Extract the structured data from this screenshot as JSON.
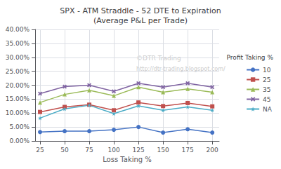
{
  "chart_data": {
    "type": "line",
    "title": "SPX - ATM Straddle - 52 DTE to Expiration\n(Average P&L per Trade)",
    "xlabel": "Loss Taking %",
    "legend_title": "Profit Taking %",
    "annotations": [
      "©DTR Trading",
      "http://dtr-trading.blogspot.com/"
    ],
    "x": [
      25,
      50,
      75,
      100,
      125,
      150,
      175,
      200
    ],
    "series": [
      {
        "name": "10",
        "color": "#4472C4",
        "marker": "circle",
        "values": [
          0.032,
          0.035,
          0.035,
          0.04,
          0.05,
          0.03,
          0.042,
          0.03
        ]
      },
      {
        "name": "25",
        "color": "#C0504D",
        "marker": "square",
        "values": [
          0.104,
          0.122,
          0.13,
          0.11,
          0.138,
          0.125,
          0.136,
          0.124
        ]
      },
      {
        "name": "35",
        "color": "#9BBB59",
        "marker": "triangle",
        "values": [
          0.138,
          0.167,
          0.182,
          0.162,
          0.193,
          0.175,
          0.187,
          0.175
        ]
      },
      {
        "name": "45",
        "color": "#8064A2",
        "marker": "x",
        "values": [
          0.17,
          0.195,
          0.2,
          0.178,
          0.207,
          0.193,
          0.207,
          0.193
        ]
      },
      {
        "name": "NA",
        "color": "#4BACC6",
        "marker": "star",
        "values": [
          0.082,
          0.115,
          0.128,
          0.098,
          0.126,
          0.11,
          0.122,
          0.11
        ]
      }
    ],
    "xlim": [
      20,
      207
    ],
    "xticks": [
      25,
      50,
      75,
      100,
      125,
      150,
      175,
      200
    ],
    "ylim": [
      0.0,
      0.4
    ],
    "yticks": [
      {
        "value": 0.0,
        "label": "0.00%"
      },
      {
        "value": 0.05,
        "label": "5.00%"
      },
      {
        "value": 0.1,
        "label": "10.00%"
      },
      {
        "value": 0.15,
        "label": "15.00%"
      },
      {
        "value": 0.2,
        "label": "20.00%"
      },
      {
        "value": 0.25,
        "label": "25.00%"
      },
      {
        "value": 0.3,
        "label": "30.00%"
      },
      {
        "value": 0.35,
        "label": "35.00%"
      },
      {
        "value": 0.4,
        "label": "40.00%"
      }
    ],
    "grid": true,
    "legend": "right"
  }
}
